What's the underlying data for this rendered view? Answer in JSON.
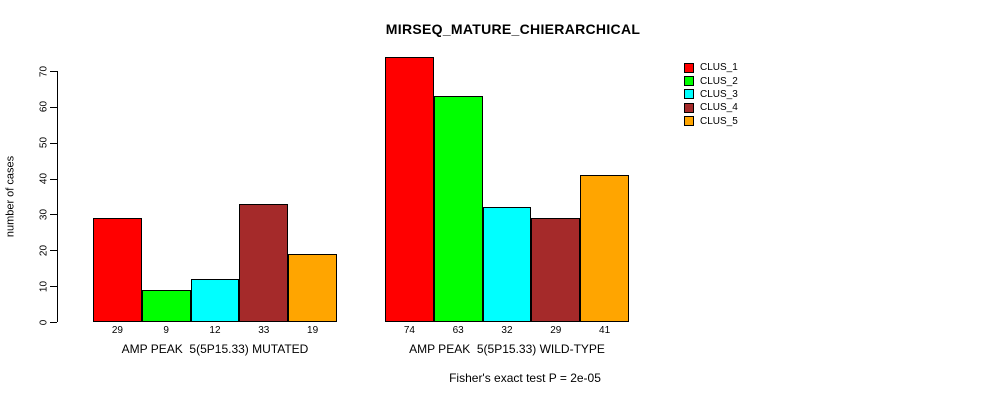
{
  "chart_data": {
    "type": "bar",
    "title": "MIRSEQ_MATURE_CHIERARCHICAL",
    "ylabel": "number of cases",
    "ylim": [
      0,
      70
    ],
    "yticks": [
      0,
      10,
      20,
      30,
      40,
      50,
      60,
      70
    ],
    "grid": false,
    "legend_position": "top-right",
    "series": [
      {
        "name": "CLUS_1",
        "color": "#FF0000",
        "values": [
          29,
          74
        ]
      },
      {
        "name": "CLUS_2",
        "color": "#00FF00",
        "values": [
          9,
          63
        ]
      },
      {
        "name": "CLUS_3",
        "color": "#00FFFF",
        "values": [
          12,
          32
        ]
      },
      {
        "name": "CLUS_4",
        "color": "#A52A2A",
        "values": [
          33,
          29
        ]
      },
      {
        "name": "CLUS_5",
        "color": "#FFA500",
        "values": [
          19,
          41
        ]
      }
    ],
    "groups": [
      {
        "label": "AMP PEAK  5(5P15.33) MUTATED",
        "values": [
          29,
          9,
          12,
          33,
          19
        ]
      },
      {
        "label": "AMP PEAK  5(5P15.33) WILD-TYPE",
        "values": [
          74,
          63,
          32,
          29,
          41
        ]
      }
    ],
    "annotation": "Fisher's exact test P = 2e-05"
  }
}
